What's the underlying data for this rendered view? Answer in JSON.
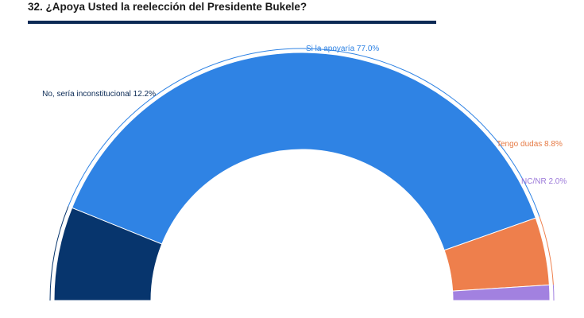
{
  "title": "32. ¿Apoya Usted la reelección del Presidente Bukele?",
  "chart_data": {
    "type": "pie",
    "variant": "half-donut",
    "slices": [
      {
        "label": "No, sería inconstitucional 12.2%",
        "value": 12.2,
        "color": "#07356d",
        "label_color": "#0b2a55"
      },
      {
        "label": "Si la apoyaría 77.0%",
        "value": 77.0,
        "color": "#2f83e4",
        "label_color": "#2f83e4"
      },
      {
        "label": "Tengo dudas 8.8%",
        "value": 8.8,
        "color": "#ee7f4c",
        "label_color": "#e67a44"
      },
      {
        "label": "NC/NR 2.0%",
        "value": 2.0,
        "color": "#a281e0",
        "label_color": "#9b78d9"
      }
    ]
  }
}
